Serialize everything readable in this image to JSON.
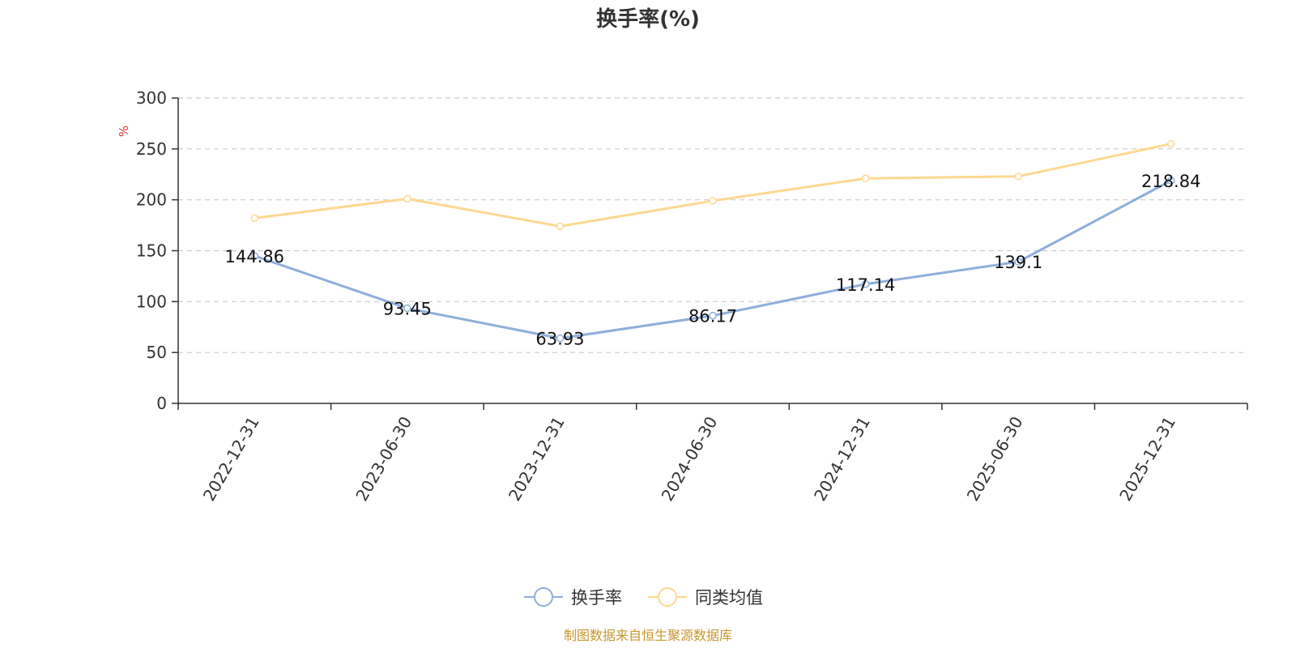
{
  "chart_data": {
    "type": "line",
    "title": "换手率(%)",
    "ylabel": "%",
    "xlabel": "",
    "ylim": [
      0,
      300
    ],
    "yticks": [
      0,
      50,
      100,
      150,
      200,
      250,
      300
    ],
    "categories": [
      "2022-12-31",
      "2023-06-30",
      "2023-12-31",
      "2024-06-30",
      "2024-12-31",
      "2025-06-30",
      "2025-12-31"
    ],
    "series": [
      {
        "name": "换手率",
        "color": "#8eaedb",
        "values": [
          144.86,
          93.45,
          63.93,
          86.17,
          117.14,
          139.1,
          218.84
        ],
        "labels": [
          "144.86",
          "93.45",
          "63.93",
          "86.17",
          "117.14",
          "139.1",
          "218.84"
        ]
      },
      {
        "name": "同类均值",
        "color": "#fcd890",
        "values": [
          182,
          201,
          174,
          199,
          221,
          223,
          255
        ]
      }
    ],
    "grid": true,
    "legend": "bottom-center",
    "source": "制图数据来自恒生聚源数据库"
  }
}
